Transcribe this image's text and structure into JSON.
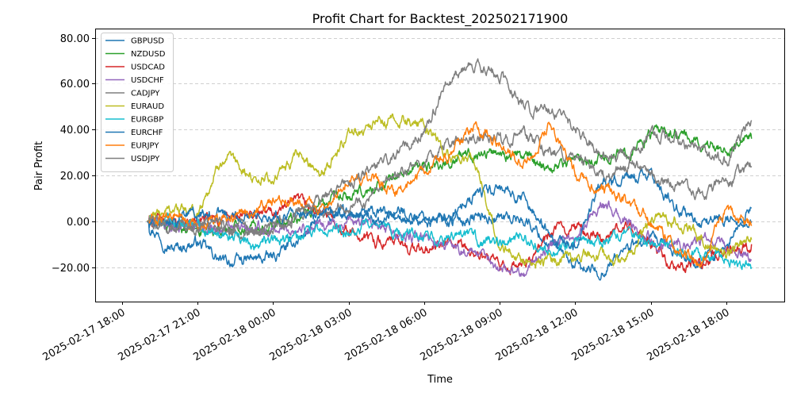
{
  "chart_data": {
    "type": "line",
    "title": "Profit Chart for Backtest_202502171900",
    "xlabel": "Time",
    "ylabel": "Pair Profit",
    "ylim": [
      -35,
      84
    ],
    "y_ticks": [
      -20,
      0,
      20,
      40,
      60,
      80
    ],
    "y_tick_labels": [
      "−20.00",
      "0.00",
      "20.00",
      "40.00",
      "60.00",
      "80.00"
    ],
    "x_range_hours": [
      -1.06,
      26.3
    ],
    "x_ticks": [
      0,
      3,
      6,
      9,
      12,
      15,
      18,
      21,
      24
    ],
    "x_tick_labels": [
      "2025-02-17 18:00",
      "2025-02-17 21:00",
      "2025-02-18 00:00",
      "2025-02-18 03:00",
      "2025-02-18 06:00",
      "2025-02-18 09:00",
      "2025-02-18 12:00",
      "2025-02-18 15:00",
      "2025-02-18 18:00"
    ],
    "grid": "y-dashed",
    "legend_position": "top-left",
    "x_hours": [
      1.0,
      2.0,
      3.0,
      4.0,
      5.0,
      6.0,
      7.0,
      8.0,
      9.0,
      10.0,
      11.0,
      12.0,
      13.0,
      14.0,
      15.0,
      16.0,
      17.0,
      18.0,
      19.0,
      20.0,
      21.0,
      22.0,
      23.0,
      24.0,
      25.0
    ],
    "series": [
      {
        "name": "GBPUSD",
        "color": "#1f77b4",
        "values": [
          0,
          -12,
          -9,
          -18,
          -17,
          -16,
          -8,
          2,
          3,
          3,
          4,
          2,
          0,
          2,
          2,
          1,
          -10,
          -20,
          -22,
          -12,
          -8,
          -14,
          -18,
          -10,
          6
        ]
      },
      {
        "name": "NZDUSD",
        "color": "#2ca02c",
        "values": [
          0,
          -3,
          -4,
          -3,
          -2,
          -2,
          2,
          8,
          10,
          14,
          20,
          24,
          26,
          30,
          30,
          28,
          24,
          27,
          28,
          30,
          38,
          38,
          34,
          32,
          36
        ]
      },
      {
        "name": "USDCAD",
        "color": "#d62728",
        "values": [
          0,
          0,
          0,
          1,
          2,
          4,
          8,
          3,
          -4,
          -8,
          -10,
          -13,
          -10,
          -14,
          -20,
          -20,
          -5,
          -2,
          -8,
          -2,
          -10,
          -22,
          -18,
          -12,
          -10
        ]
      },
      {
        "name": "USDCHF",
        "color": "#9467bd",
        "values": [
          0,
          -2,
          -1,
          -3,
          -4,
          -4,
          -3,
          -2,
          0,
          -2,
          -6,
          -8,
          -10,
          -14,
          -20,
          -22,
          -10,
          -6,
          8,
          0,
          -8,
          -10,
          -8,
          -12,
          -17
        ]
      },
      {
        "name": "CADJPY",
        "color": "#7f7f7f",
        "values": [
          0,
          -2,
          -2,
          -3,
          -4,
          -2,
          4,
          6,
          8,
          10,
          20,
          26,
          34,
          36,
          36,
          38,
          30,
          28,
          20,
          24,
          38,
          36,
          30,
          26,
          44
        ]
      },
      {
        "name": "EURAUD",
        "color": "#bcbd22",
        "values": [
          0,
          6,
          3,
          28,
          20,
          18,
          28,
          22,
          38,
          42,
          44,
          42,
          28,
          26,
          -10,
          -18,
          -18,
          -14,
          -15,
          -18,
          2,
          0,
          -8,
          -14,
          -8
        ]
      },
      {
        "name": "EURGBP",
        "color": "#17becf",
        "values": [
          0,
          -1,
          -2,
          -4,
          -10,
          -9,
          -7,
          -5,
          -3,
          -2,
          -5,
          -6,
          -8,
          -8,
          -10,
          -8,
          -14,
          -10,
          -8,
          -5,
          -10,
          -12,
          -16,
          -16,
          -20
        ]
      },
      {
        "name": "EURCHF",
        "color": "#1f77b4",
        "values": [
          0,
          2,
          3,
          3,
          3,
          3,
          3,
          4,
          2,
          1,
          0,
          -1,
          2,
          12,
          14,
          10,
          -6,
          -10,
          16,
          20,
          20,
          6,
          -2,
          2,
          0
        ]
      },
      {
        "name": "EURJPY",
        "color": "#ff7f0e",
        "values": [
          0,
          2,
          -2,
          1,
          3,
          8,
          10,
          5,
          20,
          18,
          12,
          24,
          28,
          42,
          34,
          24,
          42,
          22,
          14,
          10,
          0,
          -12,
          -18,
          6,
          -2
        ]
      },
      {
        "name": "USDJPY",
        "color": "#7f7f7f",
        "values": [
          0,
          -3,
          -2,
          -2,
          -3,
          -4,
          3,
          10,
          16,
          24,
          30,
          40,
          62,
          68,
          64,
          50,
          48,
          40,
          30,
          28,
          20,
          16,
          12,
          16,
          24
        ]
      }
    ]
  }
}
